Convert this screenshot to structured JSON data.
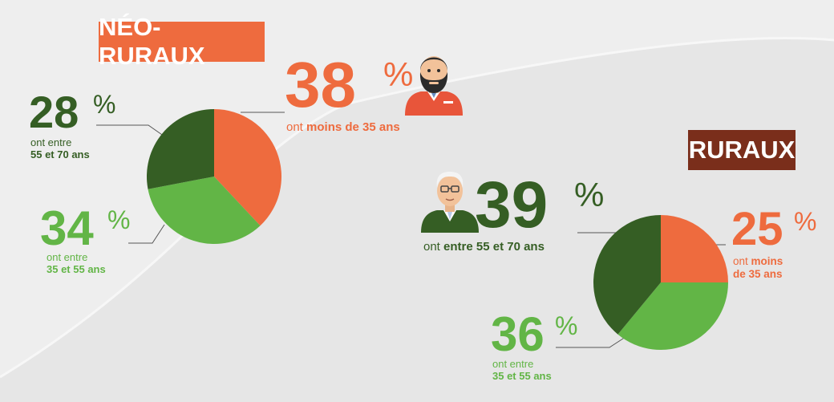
{
  "colors": {
    "orange": "#ee6b3e",
    "dark_green": "#355e24",
    "light_green": "#62b546",
    "brown": "#7a2e1b",
    "background": "#e6e6e6"
  },
  "icons": [
    "bearded-man-icon",
    "elderly-man-icon"
  ],
  "neo": {
    "badge": "NÉO-RURAUX",
    "segments": [
      {
        "value": "38",
        "pct": "%",
        "line1": "ont ",
        "bold1": "moins de 35 ans",
        "line2": "",
        "bold2": ""
      },
      {
        "value": "28",
        "pct": "%",
        "line1": "ont entre",
        "bold1": "",
        "line2": "",
        "bold2": "55 et 70 ans"
      },
      {
        "value": "34",
        "pct": "%",
        "line1": "ont entre",
        "bold1": "",
        "line2": "",
        "bold2": "35 et 55 ans"
      }
    ]
  },
  "rur": {
    "badge": "RURAUX",
    "segments": [
      {
        "value": "39",
        "pct": "%",
        "line1": "ont ",
        "bold1": "entre 55 et 70 ans"
      },
      {
        "value": "25",
        "pct": "%",
        "line1": "ont ",
        "bold1": "moins",
        "bold2": "de 35 ans"
      },
      {
        "value": "36",
        "pct": "%",
        "line1": "ont entre",
        "bold2": "35 et 55 ans"
      }
    ]
  },
  "chart_data": [
    {
      "type": "pie",
      "title": "NÉO-RURAUX",
      "categories": [
        "moins de 35 ans",
        "35 et 55 ans",
        "55 et 70 ans"
      ],
      "values": [
        38,
        34,
        28
      ],
      "colors": [
        "#ee6b3e",
        "#62b546",
        "#355e24"
      ]
    },
    {
      "type": "pie",
      "title": "RURAUX",
      "categories": [
        "moins de 35 ans",
        "35 et 55 ans",
        "55 et 70 ans"
      ],
      "values": [
        25,
        36,
        39
      ],
      "colors": [
        "#ee6b3e",
        "#62b546",
        "#355e24"
      ]
    }
  ]
}
